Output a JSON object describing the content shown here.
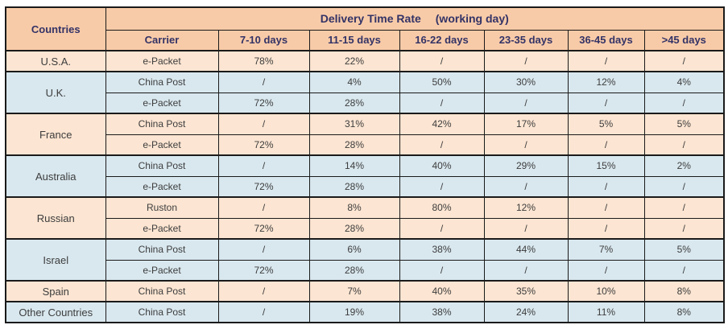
{
  "colors": {
    "header_bg": "#f8cba8",
    "peach_row_bg": "#fce5d2",
    "blue_row_bg": "#d9e8ef",
    "border": "#1a1a1a",
    "header_text": "#333366",
    "cell_text": "#3d3d3d",
    "page_bg": "#ffffff"
  },
  "table": {
    "corner_header": "Countries",
    "title": "Delivery Time Rate",
    "title_note": "(working day)",
    "columns": [
      "Carrier",
      "7-10 days",
      "11-15 days",
      "16-22 days",
      "23-35 days",
      "36-45 days",
      ">45 days"
    ],
    "groups": [
      {
        "country": "U.S.A.",
        "theme": "peach",
        "rows": [
          {
            "carrier": "e-Packet",
            "values": [
              "78%",
              "22%",
              "/",
              "/",
              "/",
              "/"
            ]
          }
        ]
      },
      {
        "country": "U.K.",
        "theme": "blue",
        "rows": [
          {
            "carrier": "China Post",
            "values": [
              "/",
              "4%",
              "50%",
              "30%",
              "12%",
              "4%"
            ]
          },
          {
            "carrier": "e-Packet",
            "values": [
              "72%",
              "28%",
              "/",
              "/",
              "/",
              "/"
            ]
          }
        ]
      },
      {
        "country": "France",
        "theme": "peach",
        "rows": [
          {
            "carrier": "China Post",
            "values": [
              "/",
              "31%",
              "42%",
              "17%",
              "5%",
              "5%"
            ]
          },
          {
            "carrier": "e-Packet",
            "values": [
              "72%",
              "28%",
              "/",
              "/",
              "/",
              "/"
            ]
          }
        ]
      },
      {
        "country": "Australia",
        "theme": "blue",
        "rows": [
          {
            "carrier": "China Post",
            "values": [
              "/",
              "14%",
              "40%",
              "29%",
              "15%",
              "2%"
            ]
          },
          {
            "carrier": "e-Packet",
            "values": [
              "72%",
              "28%",
              "/",
              "/",
              "/",
              "/"
            ]
          }
        ]
      },
      {
        "country": "Russian",
        "theme": "peach",
        "rows": [
          {
            "carrier": "Ruston",
            "values": [
              "/",
              "8%",
              "80%",
              "12%",
              "/",
              "/"
            ]
          },
          {
            "carrier": "e-Packet",
            "values": [
              "72%",
              "28%",
              "/",
              "/",
              "/",
              "/"
            ]
          }
        ]
      },
      {
        "country": "Israel",
        "theme": "blue",
        "rows": [
          {
            "carrier": "China Post",
            "values": [
              "/",
              "6%",
              "38%",
              "44%",
              "7%",
              "5%"
            ]
          },
          {
            "carrier": "e-Packet",
            "values": [
              "72%",
              "28%",
              "/",
              "/",
              "/",
              "/"
            ]
          }
        ]
      },
      {
        "country": "Spain",
        "theme": "peach",
        "rows": [
          {
            "carrier": "China Post",
            "values": [
              "/",
              "7%",
              "40%",
              "35%",
              "10%",
              "8%"
            ]
          }
        ]
      },
      {
        "country": "Other Countries",
        "theme": "blue",
        "rows": [
          {
            "carrier": "China Post",
            "values": [
              "/",
              "19%",
              "38%",
              "24%",
              "11%",
              "8%"
            ]
          }
        ]
      }
    ]
  }
}
